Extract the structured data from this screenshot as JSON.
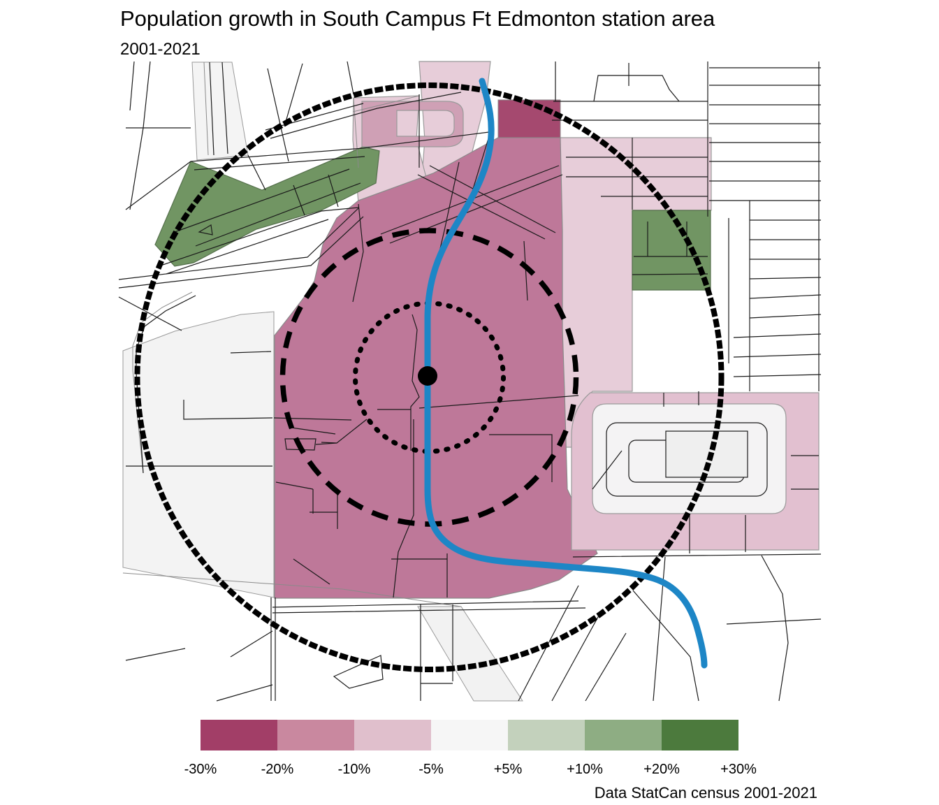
{
  "title": "Population growth in South Campus Ft Edmonton station area",
  "subtitle": "2001-2021",
  "caption": "Data StatCan census 2001-2021",
  "legend": {
    "tick_labels": [
      "-30%",
      "-20%",
      "-10%",
      "-5%",
      "+5%",
      "+10%",
      "+20%",
      "+30%"
    ],
    "swatches": [
      {
        "range": "-30% to -20%",
        "color": "#a23e67"
      },
      {
        "range": "-20% to -10%",
        "color": "#c9889f"
      },
      {
        "range": "-10% to -5%",
        "color": "#e0bfcc"
      },
      {
        "range": "-5% to +5%",
        "color": "#f6f6f6"
      },
      {
        "range": "+5% to +10%",
        "color": "#c3d1bc"
      },
      {
        "range": "+10% to +20%",
        "color": "#8ead83"
      },
      {
        "range": "+20% to +30%",
        "color": "#4c7a3d"
      }
    ]
  },
  "map": {
    "decline_strong_fill": "#be7899",
    "decline_strong_overlap_fill": "#a5496f",
    "decline_mid_fill": "#cfa0b5",
    "decline_light_fill": "#e7cdd9",
    "decline_ring_fill": "#e2c0d0",
    "growth_strong_fill": "#719563",
    "neutral_fill": "#f3f3f3",
    "street_color": "#1a1a1a",
    "street_minor_color": "#8a8a8a",
    "lrt_line_color": "#1d86c6",
    "ring_color": "#000000",
    "station_marker_color": "#000000"
  }
}
